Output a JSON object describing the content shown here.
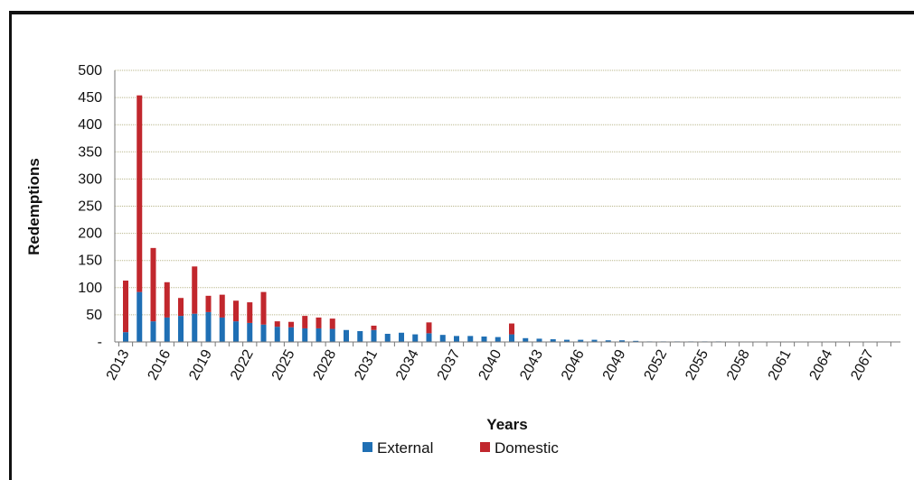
{
  "chart_data": {
    "type": "bar",
    "stacked": true,
    "xlabel": "Years",
    "ylabel": "Redemptions",
    "ylim": [
      0,
      500
    ],
    "yticks": [
      0,
      50,
      100,
      150,
      200,
      250,
      300,
      350,
      400,
      450,
      500
    ],
    "ytick_labels": [
      "-",
      "50",
      "100",
      "150",
      "200",
      "250",
      "300",
      "350",
      "400",
      "450",
      "500"
    ],
    "x_tick_labels": [
      "2013",
      "2016",
      "2019",
      "2022",
      "2025",
      "2028",
      "2031",
      "2034",
      "2037",
      "2040",
      "2043",
      "2046",
      "2049",
      "2052",
      "2055",
      "2058",
      "2061",
      "2064",
      "2067"
    ],
    "grid": true,
    "legend_position": "bottom",
    "categories": [
      2013,
      2014,
      2015,
      2016,
      2017,
      2018,
      2019,
      2020,
      2021,
      2022,
      2023,
      2024,
      2025,
      2026,
      2027,
      2028,
      2029,
      2030,
      2031,
      2032,
      2033,
      2034,
      2035,
      2036,
      2037,
      2038,
      2039,
      2040,
      2041,
      2042,
      2043,
      2044,
      2045,
      2046,
      2047,
      2048,
      2049,
      2050,
      2051,
      2052,
      2053,
      2054,
      2055,
      2056,
      2057,
      2058,
      2059,
      2060,
      2061,
      2062,
      2063,
      2064,
      2065,
      2066,
      2067,
      2068,
      2069
    ],
    "series": [
      {
        "name": "External",
        "color": "#1f6fb4",
        "values": [
          18,
          92,
          38,
          45,
          48,
          52,
          55,
          45,
          38,
          35,
          32,
          28,
          27,
          25,
          25,
          24,
          22,
          20,
          22,
          15,
          17,
          14,
          16,
          13,
          11,
          11,
          10,
          9,
          14,
          7,
          6,
          5,
          4,
          4,
          4,
          3,
          3,
          2,
          1,
          1,
          1,
          1,
          1,
          1,
          0,
          0,
          0,
          0,
          0,
          0,
          0,
          0,
          0,
          0,
          0,
          0,
          0
        ]
      },
      {
        "name": "Domestic",
        "color": "#c1272d",
        "values": [
          95,
          362,
          135,
          65,
          33,
          87,
          30,
          42,
          38,
          38,
          60,
          10,
          10,
          23,
          20,
          19,
          0,
          0,
          8,
          0,
          0,
          0,
          20,
          0,
          0,
          0,
          0,
          0,
          20,
          0,
          0,
          0,
          0,
          0,
          0,
          0,
          0,
          0,
          0,
          0,
          0,
          0,
          0,
          0,
          0,
          0,
          0,
          0,
          0,
          0,
          0,
          0,
          0,
          0,
          0,
          0,
          0
        ]
      }
    ]
  }
}
